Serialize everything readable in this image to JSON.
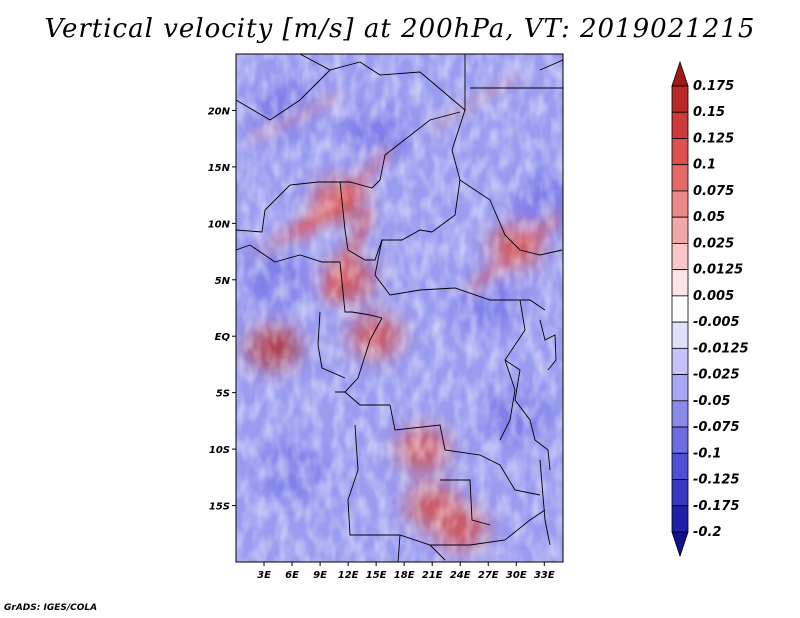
{
  "title": "Vertical velocity [m/s] at 200hPa, VT: 2019021215",
  "credit": "GrADS: IGES/COLA",
  "chart_data": {
    "type": "heatmap",
    "title": "Vertical velocity [m/s] at 200hPa, VT: 2019021215",
    "variable": "Vertical velocity",
    "units": "m/s",
    "level": "200hPa",
    "valid_time": "2019021215",
    "xlabel": "",
    "ylabel": "",
    "xlim": [
      0,
      35
    ],
    "ylim": [
      -20,
      25
    ],
    "x_ticks": [
      {
        "value": 3,
        "label": "3E"
      },
      {
        "value": 6,
        "label": "6E"
      },
      {
        "value": 9,
        "label": "9E"
      },
      {
        "value": 12,
        "label": "12E"
      },
      {
        "value": 15,
        "label": "15E"
      },
      {
        "value": 18,
        "label": "18E"
      },
      {
        "value": 21,
        "label": "21E"
      },
      {
        "value": 24,
        "label": "24E"
      },
      {
        "value": 27,
        "label": "27E"
      },
      {
        "value": 30,
        "label": "30E"
      },
      {
        "value": 33,
        "label": "33E"
      }
    ],
    "y_ticks": [
      {
        "value": 20,
        "label": "20N"
      },
      {
        "value": 15,
        "label": "15N"
      },
      {
        "value": 10,
        "label": "10N"
      },
      {
        "value": 5,
        "label": "5N"
      },
      {
        "value": 0,
        "label": "EQ"
      },
      {
        "value": -5,
        "label": "5S"
      },
      {
        "value": -10,
        "label": "10S"
      },
      {
        "value": -15,
        "label": "15S"
      }
    ],
    "colorbar": {
      "labels": [
        "0.175",
        "0.15",
        "0.125",
        "0.1",
        "0.075",
        "0.05",
        "0.025",
        "0.0125",
        "0.005",
        "-0.005",
        "-0.0125",
        "-0.025",
        "-0.05",
        "-0.075",
        "-0.1",
        "-0.125",
        "-0.175",
        "-0.2"
      ],
      "colors": [
        "#a01818",
        "#b82828",
        "#cc3a3a",
        "#dc5050",
        "#e46a6a",
        "#ec8a8a",
        "#f2a8a8",
        "#f8c8c8",
        "#fce4e4",
        "#ffffff",
        "#e0e0fc",
        "#c4c4f8",
        "#a6a6f2",
        "#8a8aec",
        "#6c6ce2",
        "#5050d4",
        "#3838c0",
        "#2020a8",
        "#10108c"
      ]
    },
    "features": [
      {
        "name": "strong ascent",
        "lon": 4,
        "lat": -1,
        "sign": "positive"
      },
      {
        "name": "ascent band",
        "lon": 12,
        "lat": 5,
        "sign": "positive"
      },
      {
        "name": "ascent",
        "lon": 21,
        "lat": -15,
        "sign": "positive"
      },
      {
        "name": "ascent",
        "lon": 24,
        "lat": -17,
        "sign": "positive"
      },
      {
        "name": "ascent",
        "lon": 20,
        "lat": -10,
        "sign": "positive"
      },
      {
        "name": "ascent",
        "lon": 15,
        "lat": 0,
        "sign": "positive"
      },
      {
        "name": "ascent streak",
        "lon": 11,
        "lat": 12,
        "sign": "positive"
      },
      {
        "name": "ascent streak",
        "lon": 30,
        "lat": 8,
        "sign": "positive"
      },
      {
        "name": "subsidence",
        "lon": 4,
        "lat": 5,
        "sign": "negative"
      },
      {
        "name": "subsidence",
        "lon": 27,
        "lat": 3,
        "sign": "negative"
      },
      {
        "name": "subsidence",
        "lon": 30,
        "lat": -7,
        "sign": "negative"
      },
      {
        "name": "subsidence",
        "lon": 6,
        "lat": -12,
        "sign": "negative"
      },
      {
        "name": "subsidence",
        "lon": 33,
        "lat": 12,
        "sign": "negative"
      },
      {
        "name": "subsidence",
        "lon": 5,
        "lat": 20,
        "sign": "negative"
      },
      {
        "name": "subsidence",
        "lon": 15,
        "lat": 18,
        "sign": "negative"
      }
    ]
  }
}
